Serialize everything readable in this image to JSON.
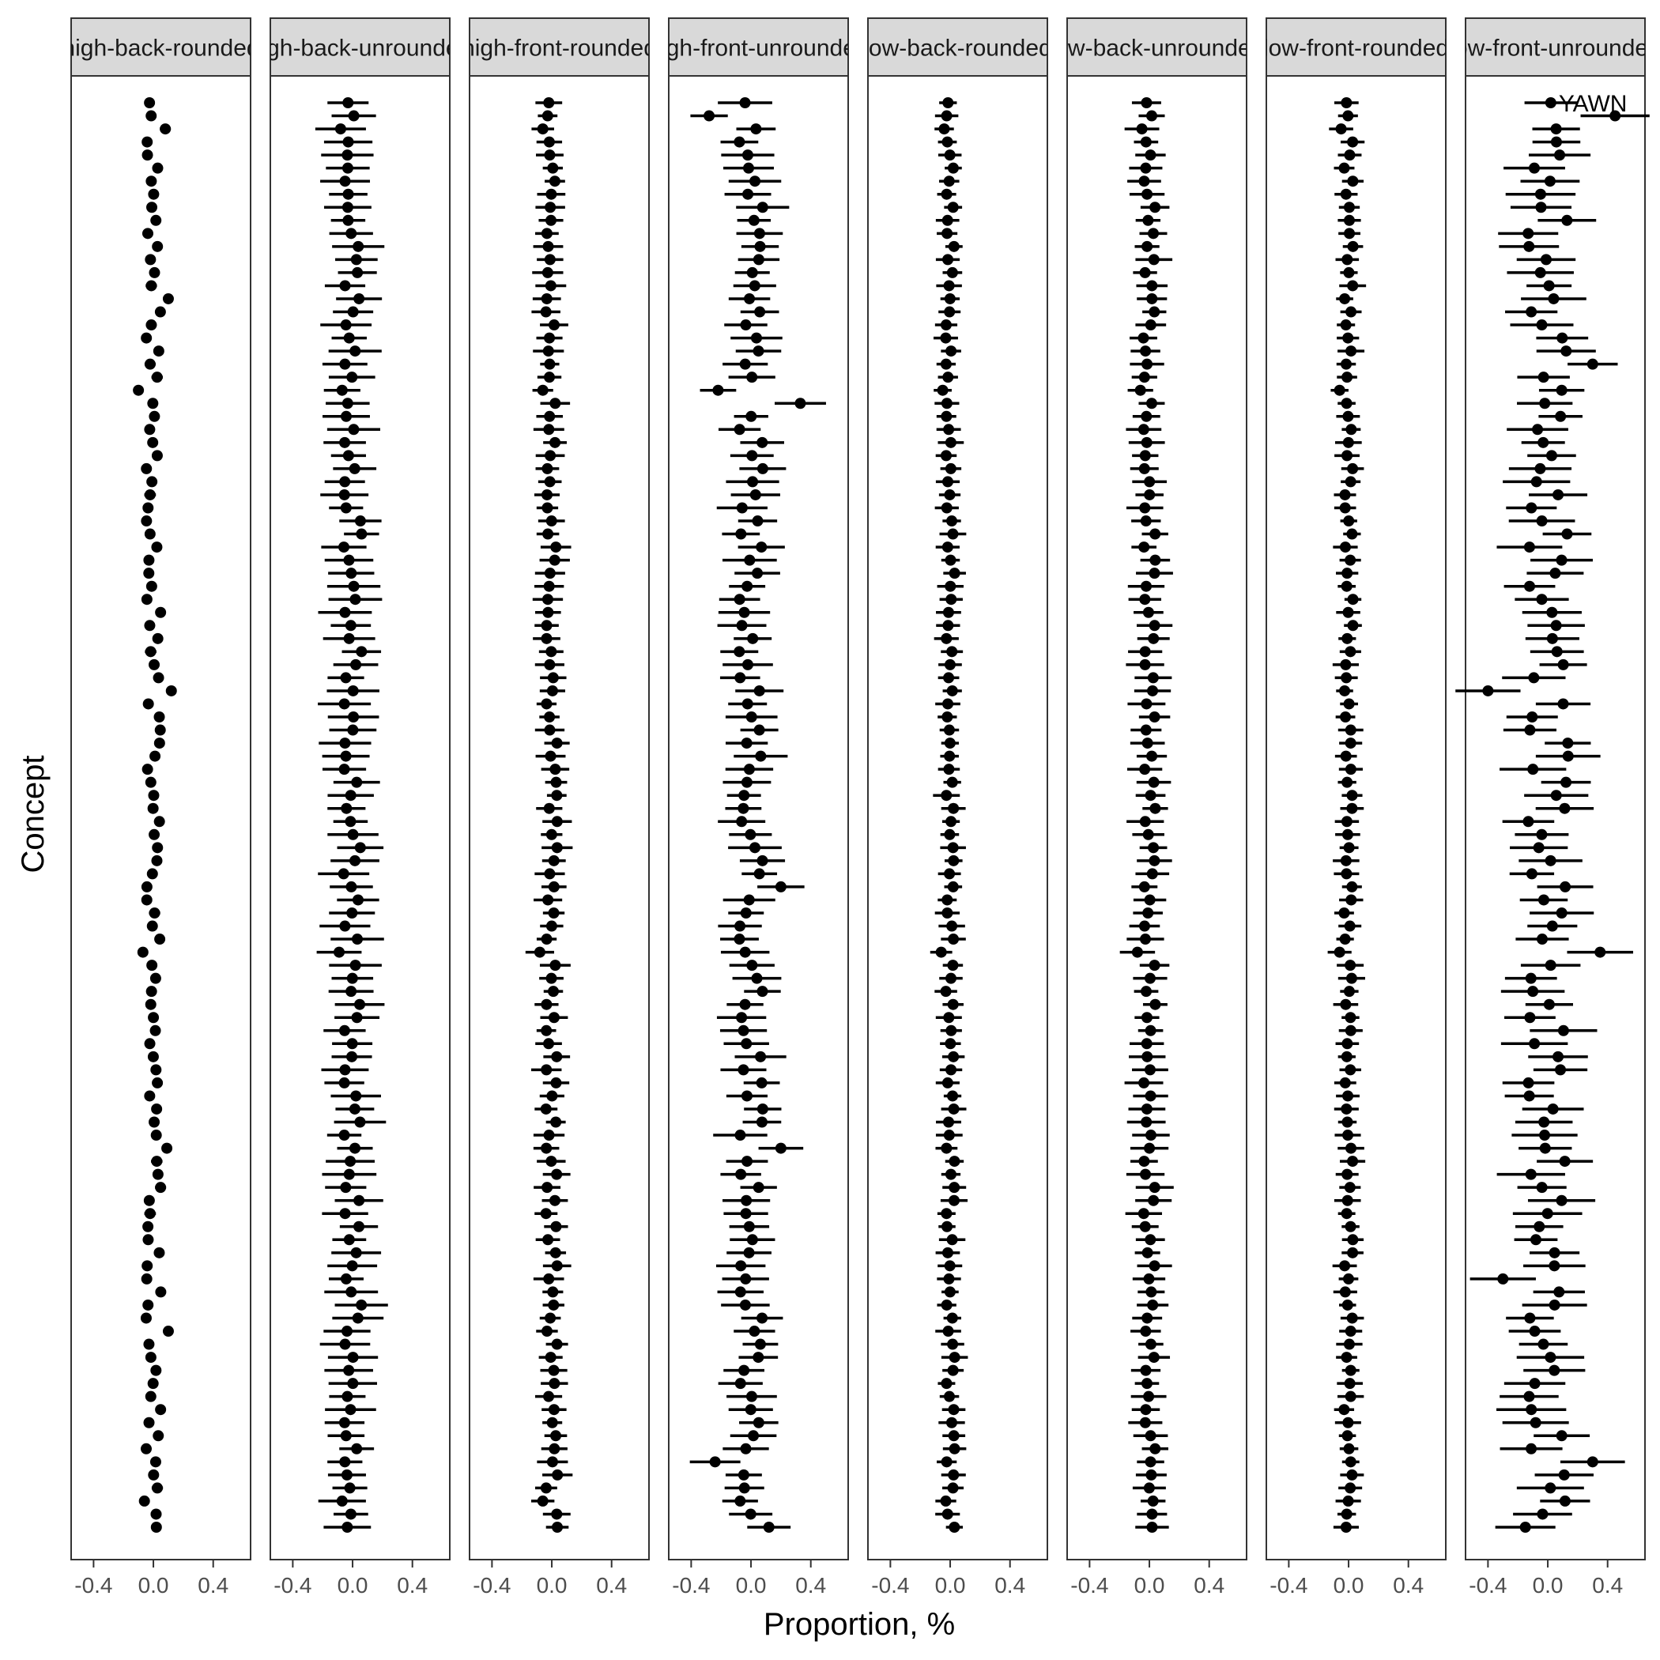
{
  "chart_data": {
    "type": "scatter",
    "subtype": "faceted-point-range",
    "xlabel": "Proportion, %",
    "ylabel": "Concept",
    "xlim": [
      -0.55,
      0.65
    ],
    "xticks": [
      -0.4,
      0.0,
      0.4
    ],
    "xtick_labels": [
      "-0.4",
      "0.0",
      "0.4"
    ],
    "grid": false,
    "legend": "none",
    "n_concepts": 110,
    "colors": {
      "mark": "#000000",
      "strip": "#d9d9d9",
      "panel_border": "#333333",
      "background": "#ffffff"
    },
    "annotation": {
      "facet": 7,
      "label": "YAWN",
      "x": 0.02
    },
    "facets": [
      {
        "label": "high-back-rounded",
        "dot_scale": 0.05,
        "ci": 0.03,
        "seed": 11,
        "spikes": [
          [
            2,
            0.08
          ],
          [
            15,
            0.1
          ],
          [
            22,
            -0.1
          ],
          [
            45,
            0.12
          ],
          [
            65,
            -0.07
          ],
          [
            80,
            0.09
          ],
          [
            94,
            0.1
          ],
          [
            107,
            -0.06
          ]
        ]
      },
      {
        "label": "high-back-unrounded",
        "dot_scale": 0.06,
        "ci": 0.14,
        "seed": 23,
        "spikes": [
          [
            2,
            -0.08
          ],
          [
            22,
            -0.07
          ],
          [
            65,
            -0.09
          ],
          [
            107,
            -0.07
          ]
        ]
      },
      {
        "label": "high-front-rounded",
        "dot_scale": 0.04,
        "ci": 0.08,
        "seed": 37,
        "spikes": [
          [
            2,
            -0.06
          ],
          [
            22,
            -0.06
          ],
          [
            65,
            -0.08
          ],
          [
            107,
            -0.06
          ]
        ]
      },
      {
        "label": "high-front-unrounded",
        "dot_scale": 0.08,
        "ci": 0.14,
        "seed": 41,
        "spikes": [
          [
            1,
            -0.28
          ],
          [
            22,
            -0.22
          ],
          [
            23,
            0.33
          ],
          [
            60,
            0.2
          ],
          [
            80,
            0.2
          ],
          [
            104,
            -0.24
          ],
          [
            109,
            0.12
          ]
        ]
      },
      {
        "label": "low-back-rounded",
        "dot_scale": 0.03,
        "ci": 0.07,
        "seed": 53,
        "spikes": [
          [
            2,
            -0.04
          ],
          [
            22,
            -0.05
          ],
          [
            65,
            -0.06
          ]
        ]
      },
      {
        "label": "low-back-unrounded",
        "dot_scale": 0.04,
        "ci": 0.1,
        "seed": 67,
        "spikes": [
          [
            2,
            -0.05
          ],
          [
            22,
            -0.06
          ],
          [
            65,
            -0.08
          ]
        ]
      },
      {
        "label": "low-front-rounded",
        "dot_scale": 0.03,
        "ci": 0.07,
        "seed": 71,
        "spikes": [
          [
            2,
            -0.05
          ],
          [
            22,
            -0.06
          ],
          [
            65,
            -0.06
          ]
        ]
      },
      {
        "label": "low-front-unrounded",
        "dot_scale": 0.14,
        "ci": 0.18,
        "seed": 89,
        "spikes": [
          [
            0,
            0.02
          ],
          [
            1,
            0.45
          ],
          [
            20,
            0.3
          ],
          [
            45,
            -0.4
          ],
          [
            65,
            0.35
          ],
          [
            90,
            -0.3
          ],
          [
            104,
            0.3
          ],
          [
            109,
            -0.15
          ]
        ]
      }
    ]
  }
}
